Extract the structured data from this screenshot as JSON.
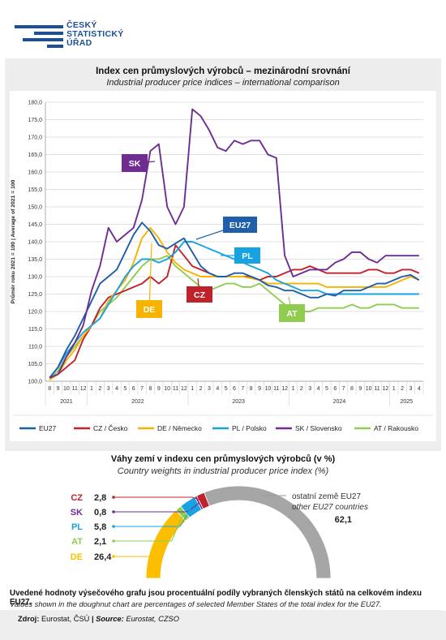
{
  "logo": {
    "line1": "ČESKÝ",
    "line2": "STATISTICKÝ",
    "line3": "ÚŘAD",
    "color": "#1b4f9c"
  },
  "header": {
    "title_cz": "Index cen průmyslových výrobců – mezinárodní srovnání",
    "title_en": "Industrial producer price indices – international comparison"
  },
  "chart_data": [
    {
      "type": "line",
      "ylabel": "Průměr roku 2021 = 100 | Average of 2021 = 100",
      "ylim": [
        100,
        180
      ],
      "yticks": [
        "100,0",
        "105,0",
        "110,0",
        "115,0",
        "120,0",
        "125,0",
        "130,0",
        "135,0",
        "140,0",
        "145,0",
        "150,0",
        "155,0",
        "160,0",
        "165,0",
        "170,0",
        "175,0",
        "180,0"
      ],
      "month_labels": [
        "8",
        "9",
        "10",
        "11",
        "12",
        "1",
        "2",
        "3",
        "4",
        "5",
        "6",
        "7",
        "8",
        "9",
        "10",
        "11",
        "12",
        "1",
        "2",
        "3",
        "4",
        "5",
        "6",
        "7",
        "8",
        "9",
        "10",
        "11",
        "12",
        "1",
        "2",
        "3",
        "4",
        "5",
        "6",
        "7",
        "8",
        "9",
        "10",
        "11",
        "12",
        "1",
        "2",
        "3",
        "4"
      ],
      "year_labels": [
        {
          "label": "2021",
          "from": 0,
          "to": 4
        },
        {
          "label": "2022",
          "from": 5,
          "to": 16
        },
        {
          "label": "2023",
          "from": 17,
          "to": 28
        },
        {
          "label": "2024",
          "from": 29,
          "to": 40
        },
        {
          "label": "2025",
          "from": 41,
          "to": 44
        }
      ],
      "series": [
        {
          "name": "EU27",
          "color": "#1f5ea8",
          "tag": "EU27",
          "values": [
            101,
            104,
            109,
            113,
            118,
            123,
            128,
            130,
            132,
            137,
            142,
            145.5,
            143,
            139,
            138,
            139.5,
            141,
            137,
            133,
            131,
            130,
            130,
            131,
            131,
            130,
            129,
            127.5,
            127,
            126,
            126,
            125,
            124,
            124,
            125,
            124.5,
            126,
            126,
            126,
            127,
            128,
            128,
            129,
            130,
            130.5,
            129
          ]
        },
        {
          "name": "CZ / Česko",
          "color": "#c0222c",
          "tag": "CZ",
          "values": [
            100.5,
            102,
            104,
            106,
            112,
            116,
            121,
            124,
            125,
            126,
            127,
            128,
            130,
            128,
            130,
            139,
            136,
            133,
            132,
            131,
            130,
            130,
            130,
            130,
            130,
            129,
            130,
            130,
            131,
            132,
            132,
            133,
            132,
            131,
            131,
            131,
            131,
            131,
            132,
            132,
            131,
            131,
            132,
            132,
            131
          ]
        },
        {
          "name": "DE / Německo",
          "color": "#f6b400",
          "tag": "DE",
          "values": [
            100.5,
            102,
            106,
            109,
            113,
            116,
            118,
            123,
            126,
            129,
            134,
            141,
            144,
            141,
            137,
            134,
            132,
            131,
            130,
            130,
            130,
            130,
            130,
            130,
            129.5,
            129,
            128,
            128,
            128,
            128,
            128,
            128,
            128,
            127,
            127,
            127,
            127,
            127,
            127,
            127,
            127,
            128,
            129,
            130,
            129
          ]
        },
        {
          "name": "PL / Polsko",
          "color": "#17a3e3",
          "tag": "PL",
          "values": [
            101,
            104,
            108,
            111,
            114,
            116,
            118,
            122,
            126,
            130,
            133,
            135,
            135,
            134,
            135,
            137,
            140,
            140,
            139,
            138,
            137,
            136,
            135,
            134,
            133,
            132,
            131,
            129,
            128,
            127,
            126,
            126,
            126,
            125,
            125,
            125,
            125,
            125,
            125,
            125,
            125,
            125,
            125,
            125,
            125
          ]
        },
        {
          "name": "SK / Slovensko",
          "color": "#6f2c91",
          "tag": "SK",
          "values": [
            101,
            102,
            107,
            111,
            116,
            126,
            133,
            144,
            140,
            142,
            144,
            152,
            166,
            168,
            150,
            145,
            150,
            178,
            176,
            172,
            167,
            166,
            169,
            168,
            169,
            169,
            165,
            164,
            136,
            130,
            131,
            132,
            132,
            132,
            134,
            135,
            137,
            137,
            135,
            134,
            136,
            136,
            136,
            136,
            136
          ]
        },
        {
          "name": "AT / Rakousko",
          "color": "#8fcc4f",
          "tag": "AT",
          "values": [
            100.5,
            103,
            107,
            110,
            113,
            116,
            120,
            122,
            124,
            127,
            130,
            133,
            135,
            135,
            136,
            133,
            131,
            129,
            127,
            126,
            127,
            128,
            128,
            127,
            127,
            128,
            126,
            124,
            122,
            121,
            120,
            120,
            121,
            121,
            121,
            121,
            122,
            121,
            121,
            122,
            122,
            122,
            121,
            121,
            121
          ]
        }
      ]
    },
    {
      "type": "pie",
      "title": "Váhy zemí v indexu cen průmyslových výrobců (v %)",
      "subtitle": "Country weights in industrial producer price index (%)",
      "slices": [
        {
          "label": "DE",
          "value": 26.4,
          "display": "26,4",
          "color": "#fcbf00"
        },
        {
          "label": "AT",
          "value": 2.1,
          "display": "2,1",
          "color": "#8fcc4f"
        },
        {
          "label": "PL",
          "value": 5.8,
          "display": "5,8",
          "color": "#17a3e3"
        },
        {
          "label": "SK",
          "value": 0.8,
          "display": "0,8",
          "color": "#6f2c91"
        },
        {
          "label": "CZ",
          "value": 2.8,
          "display": "2,8",
          "color": "#c0222c"
        },
        {
          "label": "ostatní země EU27",
          "label_en": "other EU27 countries",
          "value": 62.1,
          "display": "62,1",
          "color": "#a6a6a6"
        }
      ]
    }
  ],
  "notes": {
    "cz": "Uvedené hodnoty výsečového grafu jsou procentuální podíly vybraných členských států na celkovém indexu EU27.",
    "en": "Values shown in the doughnut chart are percentages of selected Member States of the total index for the EU27."
  },
  "source": {
    "label": "Zdroj:",
    "cz": "Eurostat, ČSÚ",
    "sep": "|",
    "label_en": "Source:",
    "en": "Eurostat, CZSO"
  }
}
